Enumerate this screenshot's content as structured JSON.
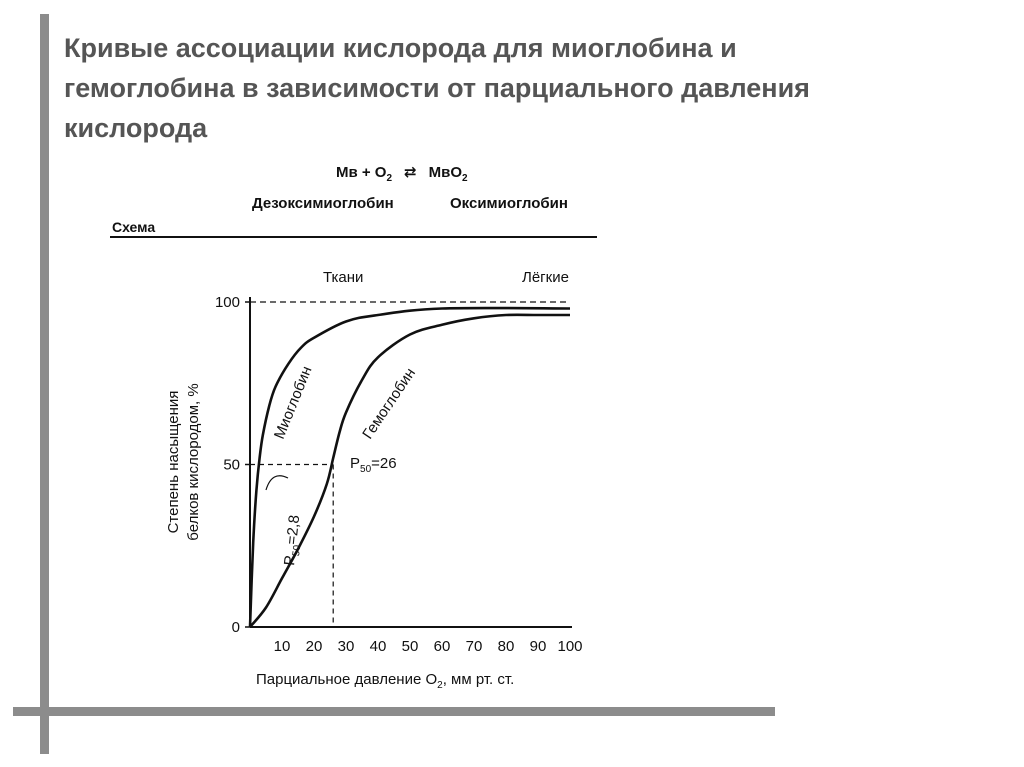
{
  "slide": {
    "title_lines": [
      "Кривые ассоциации кислорода для миоглобина и",
      "гемоглобина в зависимости от парциального давления",
      "кислорода"
    ]
  },
  "scheme": {
    "equation_left": "Мв + О",
    "equation_sub": "2",
    "equation_arrow": "⇄",
    "equation_right": "МвО",
    "equation_right_sub": "2",
    "deoxy_label": "Дезоксимиоглобин",
    "oxy_label": "Оксимиоглобин",
    "scheme_label": "Схема"
  },
  "colors": {
    "line": "#111111",
    "title": "#555555",
    "frame": "#8c8c8c"
  },
  "chart_data": {
    "type": "line",
    "xlabel_main": "Парциальное давление О",
    "xlabel_sub": "2",
    "xlabel_tail": ", мм рт. ст.",
    "ylabel_line1": "Степень насыщения",
    "ylabel_line2": "белков кислородом, %",
    "xlim": [
      0,
      100
    ],
    "ylim": [
      0,
      100
    ],
    "x_ticks": [
      10,
      20,
      30,
      40,
      50,
      60,
      70,
      80,
      90,
      100
    ],
    "y_ticks": [
      0,
      50,
      100
    ],
    "region_labels": {
      "tissues": "Ткани",
      "lungs": "Лёгкие"
    },
    "series": [
      {
        "name": "Миоглобин",
        "x": [
          0,
          1,
          2,
          3,
          4,
          6,
          8,
          12,
          16,
          20,
          30,
          40,
          60,
          100
        ],
        "y": [
          0,
          26,
          42,
          52,
          59,
          68,
          74,
          81,
          86,
          89,
          94,
          96,
          98,
          98
        ]
      },
      {
        "name": "Гемоглобин",
        "x": [
          0,
          5,
          10,
          15,
          20,
          24,
          26,
          28,
          30,
          35,
          40,
          50,
          60,
          70,
          80,
          90,
          100
        ],
        "y": [
          0,
          6,
          15,
          24,
          34,
          44,
          52,
          60,
          66,
          76,
          83,
          90,
          93,
          95,
          96,
          96,
          96
        ]
      }
    ],
    "annotations": [
      {
        "label_main": "P",
        "label_sub": "50",
        "label_tail": "=2,8",
        "x": 2.8,
        "y": 50
      },
      {
        "label_main": "P",
        "label_sub": "50",
        "label_tail": "=26",
        "x": 26,
        "y": 50
      }
    ],
    "reference_line_y": 100
  }
}
